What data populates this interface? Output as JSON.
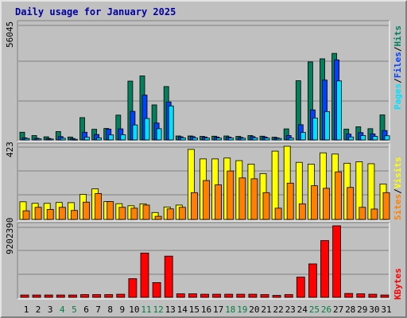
{
  "title": "Daily usage for January 2025",
  "colors": {
    "hits": "#00805c",
    "files": "#0040ff",
    "pages": "#00e0ff",
    "visits": "#ffff00",
    "sites": "#ff8000",
    "kbytes": "#ff0000",
    "weekend_label": "#008040",
    "weekday_label": "#000000",
    "panel_bg": "#c0c0c0"
  },
  "chart_data": [
    {
      "type": "bar",
      "title": "Daily usage for January 2025",
      "ymax_label": "56045",
      "legend": [
        {
          "text": "Pages",
          "color": "#00e0ff"
        },
        {
          "text": "Files",
          "color": "#0040ff"
        },
        {
          "text": "Hits",
          "color": "#00805c"
        }
      ],
      "ylim": [
        0,
        56045
      ],
      "categories": [
        "1",
        "2",
        "3",
        "4",
        "5",
        "6",
        "7",
        "8",
        "9",
        "10",
        "11",
        "12",
        "13",
        "14",
        "15",
        "16",
        "17",
        "18",
        "19",
        "20",
        "21",
        "22",
        "23",
        "24",
        "25",
        "26",
        "27",
        "28",
        "29",
        "30",
        "31"
      ],
      "series": [
        {
          "name": "Hits",
          "values": [
            3700,
            2100,
            1500,
            4000,
            1400,
            10700,
            5100,
            5500,
            11900,
            28200,
            30700,
            16800,
            25600,
            1900,
            1900,
            1700,
            1800,
            1900,
            1700,
            2100,
            1800,
            1300,
            5300,
            28400,
            37400,
            38900,
            41500,
            5200,
            6300,
            5400,
            12000
          ]
        },
        {
          "name": "Files",
          "values": [
            1000,
            800,
            700,
            1600,
            700,
            3700,
            2600,
            5200,
            5300,
            13700,
            21500,
            8100,
            18200,
            1500,
            1600,
            1400,
            1400,
            1400,
            1200,
            1600,
            1400,
            1000,
            2100,
            7300,
            14400,
            28700,
            38400,
            2800,
            3500,
            2900,
            4500
          ]
        },
        {
          "name": "Pages",
          "values": [
            700,
            500,
            400,
            800,
            300,
            1300,
            1000,
            2400,
            2500,
            7200,
            10300,
            5400,
            16300,
            1000,
            1000,
            900,
            900,
            900,
            800,
            1000,
            900,
            700,
            900,
            3600,
            10500,
            13600,
            28300,
            1400,
            2100,
            1700,
            2000
          ]
        }
      ]
    },
    {
      "type": "bar",
      "ymax_label": "423",
      "legend": [
        {
          "text": "Sites",
          "color": "#ff8000"
        },
        {
          "text": "Visits",
          "color": "#ffff00"
        }
      ],
      "ylim": [
        0,
        423
      ],
      "categories": [
        "1",
        "2",
        "3",
        "4",
        "5",
        "6",
        "7",
        "8",
        "9",
        "10",
        "11",
        "12",
        "13",
        "14",
        "15",
        "16",
        "17",
        "18",
        "19",
        "20",
        "21",
        "22",
        "23",
        "24",
        "25",
        "26",
        "27",
        "28",
        "29",
        "30",
        "31"
      ],
      "series": [
        {
          "name": "Visits",
          "values": [
            102,
            93,
            93,
            98,
            97,
            145,
            177,
            103,
            91,
            79,
            90,
            40,
            72,
            83,
            405,
            350,
            350,
            355,
            340,
            320,
            265,
            395,
            423,
            330,
            320,
            385,
            378,
            325,
            333,
            322,
            205
          ]
        },
        {
          "name": "Sites",
          "values": [
            50,
            70,
            58,
            70,
            52,
            100,
            150,
            103,
            70,
            65,
            83,
            18,
            61,
            70,
            155,
            225,
            200,
            280,
            240,
            235,
            155,
            65,
            210,
            90,
            195,
            180,
            275,
            185,
            70,
            60,
            155
          ]
        }
      ]
    },
    {
      "type": "bar",
      "ymax_label": "9202390",
      "legend": [
        {
          "text": "KBytes",
          "color": "#ff0000"
        }
      ],
      "ylim": [
        0,
        9202390
      ],
      "categories": [
        "1",
        "2",
        "3",
        "4",
        "5",
        "6",
        "7",
        "8",
        "9",
        "10",
        "11",
        "12",
        "13",
        "14",
        "15",
        "16",
        "17",
        "18",
        "19",
        "20",
        "21",
        "22",
        "23",
        "24",
        "25",
        "26",
        "27",
        "28",
        "29",
        "30",
        "31"
      ],
      "series": [
        {
          "name": "KBytes",
          "values": [
            300000,
            300000,
            300000,
            300000,
            300000,
            350000,
            350000,
            350000,
            400000,
            2400000,
            5700000,
            1900000,
            5300000,
            450000,
            450000,
            400000,
            400000,
            400000,
            400000,
            400000,
            350000,
            250000,
            350000,
            2600000,
            4300000,
            7300000,
            9202390,
            500000,
            450000,
            400000,
            300000
          ]
        }
      ]
    }
  ]
}
